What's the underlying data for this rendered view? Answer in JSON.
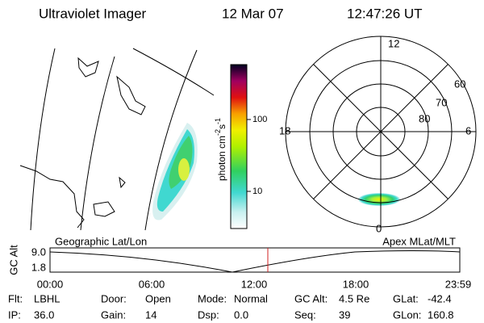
{
  "header": {
    "title": "Ultraviolet Imager",
    "date": "12 Mar 07",
    "time": "12:47:26 UT"
  },
  "colorbar": {
    "label": {
      "text": "photon cm",
      "sup1": "-2",
      "mid": "s",
      "sup2": "-1"
    },
    "ticks": [
      "100",
      "10"
    ]
  },
  "polar": {
    "mlt_labels": [
      "12",
      "18",
      "6",
      "0"
    ],
    "mlat_labels": [
      "60",
      "70",
      "80"
    ]
  },
  "timeline": {
    "left_label": "Geographic Lat/Lon",
    "right_label": "Apex MLat/MLT",
    "y_label": "GC Alt",
    "yticks": [
      "9.0",
      "1.8"
    ],
    "xticks": [
      "00:00",
      "06:00",
      "12:00",
      "18:00",
      "23:59"
    ]
  },
  "footer": {
    "items": [
      {
        "label": "Flt:",
        "value": "LBHL"
      },
      {
        "label": "IP:",
        "value": "36.0"
      },
      {
        "label": "Door:",
        "value": "Open"
      },
      {
        "label": "Gain:",
        "value": "14"
      },
      {
        "label": "Mode:",
        "value": "Normal"
      },
      {
        "label": "Dsp:",
        "value": "0.0"
      },
      {
        "label": "GC Alt:",
        "value": "4.5 Re"
      },
      {
        "label": "Seq:",
        "value": "39"
      },
      {
        "label": "GLat:",
        "value": "-42.4"
      },
      {
        "label": "GLon:",
        "value": "160.8"
      }
    ]
  }
}
